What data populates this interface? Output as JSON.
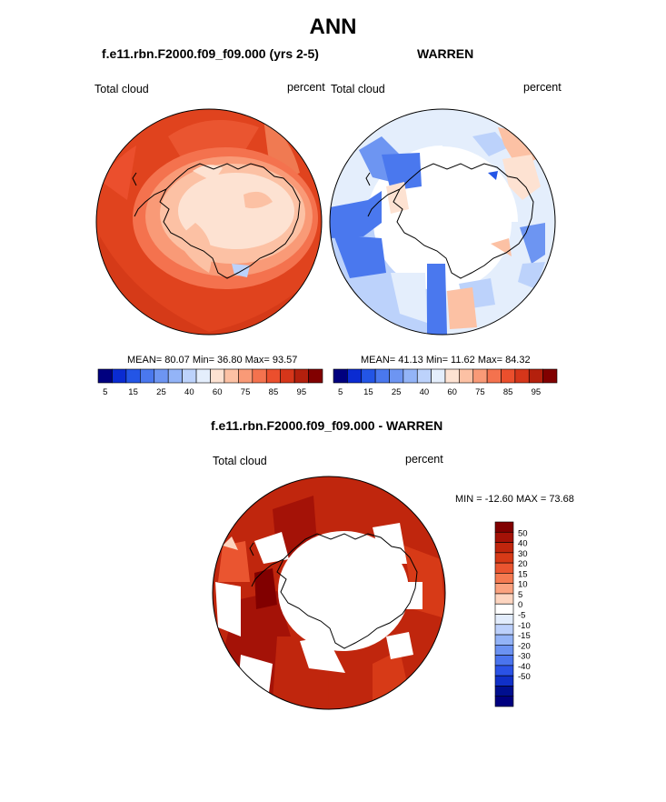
{
  "title": "ANN",
  "panels": [
    {
      "title": "f.e11.rbn.F2000.f09_f09.000 (yrs 2-5)",
      "left_label": "Total cloud",
      "right_label": "percent",
      "stats": "MEAN=  80.07  Min=  36.80  Max=  93.57"
    },
    {
      "title": "WARREN",
      "left_label": "Total cloud",
      "right_label": "percent",
      "stats": "MEAN=  41.13  Min=  11.62  Max=  84.32"
    },
    {
      "title": "f.e11.rbn.F2000.f09_f09.000 - WARREN",
      "left_label": "Total cloud",
      "right_label": "percent",
      "stats": "MIN = -12.60 MAX =  73.68"
    }
  ],
  "colorbar_horizontal": {
    "tick_labels": [
      "5",
      "15",
      "25",
      "40",
      "60",
      "75",
      "85",
      "95"
    ],
    "colors": [
      "#00007f",
      "#0a2bd2",
      "#2355e6",
      "#4a78ee",
      "#6d95f2",
      "#93b4f7",
      "#bcd2fb",
      "#e4eefc",
      "#fde2d2",
      "#fcc1a4",
      "#f99a77",
      "#f4724e",
      "#eb4f2d",
      "#d6361a",
      "#b4200d",
      "#810000"
    ]
  },
  "colorbar_vertical": {
    "tick_labels": [
      "50",
      "40",
      "30",
      "20",
      "15",
      "10",
      "5",
      "0",
      "-5",
      "-10",
      "-15",
      "-20",
      "-30",
      "-40",
      "-50"
    ],
    "colors": [
      "#810000",
      "#a41207",
      "#c0260d",
      "#d73a17",
      "#ea5530",
      "#f57a51",
      "#fba27f",
      "#fdd5c0",
      "#ffffff",
      "#e2ecfc",
      "#bcd0fb",
      "#93b3f7",
      "#6b92f2",
      "#4a74ee",
      "#2a52e6",
      "#1030c8",
      "#000f8f",
      "#00007f"
    ]
  }
}
